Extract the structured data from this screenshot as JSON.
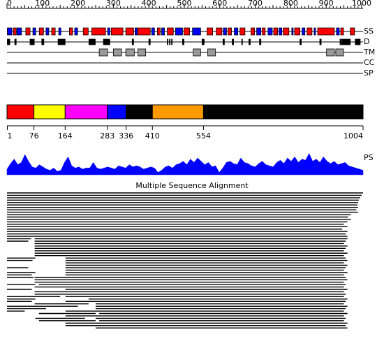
{
  "ruler": {
    "ticks": [
      0,
      100,
      200,
      300,
      400,
      500,
      600,
      700,
      800,
      900,
      1000
    ]
  },
  "tracks": [
    {
      "label": "SS",
      "segments": [
        {
          "kind": "strand",
          "range": [
            1,
            14
          ]
        },
        {
          "kind": "helix",
          "range": [
            18,
            26
          ]
        },
        {
          "kind": "strand",
          "range": [
            28,
            41
          ]
        },
        {
          "kind": "helix",
          "range": [
            53,
            65
          ]
        },
        {
          "kind": "strand",
          "range": [
            73,
            81
          ]
        },
        {
          "kind": "helix",
          "range": [
            91,
            103
          ]
        },
        {
          "kind": "strand",
          "range": [
            110,
            118
          ]
        },
        {
          "kind": "helix",
          "range": [
            126,
            136
          ]
        },
        {
          "kind": "strand",
          "range": [
            146,
            152
          ]
        },
        {
          "kind": "helix",
          "range": [
            176,
            185
          ]
        },
        {
          "kind": "strand",
          "range": [
            191,
            199
          ]
        },
        {
          "kind": "helix",
          "range": [
            215,
            229
          ]
        },
        {
          "kind": "helix",
          "range": [
            239,
            278
          ]
        },
        {
          "kind": "strand",
          "range": [
            284,
            290
          ]
        },
        {
          "kind": "helix",
          "range": [
            294,
            327
          ]
        },
        {
          "kind": "helix",
          "range": [
            335,
            357
          ]
        },
        {
          "kind": "strand",
          "range": [
            361,
            367
          ]
        },
        {
          "kind": "helix",
          "range": [
            369,
            404
          ]
        },
        {
          "kind": "strand",
          "range": [
            408,
            416
          ]
        },
        {
          "kind": "helix",
          "range": [
            424,
            432
          ]
        },
        {
          "kind": "strand",
          "range": [
            436,
            444
          ]
        },
        {
          "kind": "helix",
          "range": [
            452,
            469
          ]
        },
        {
          "kind": "strand",
          "range": [
            475,
            495
          ]
        },
        {
          "kind": "helix",
          "range": [
            499,
            515
          ]
        },
        {
          "kind": "strand",
          "range": [
            523,
            546
          ]
        },
        {
          "kind": "helix",
          "range": [
            564,
            580
          ]
        },
        {
          "kind": "helix",
          "range": [
            590,
            606
          ]
        },
        {
          "kind": "strand",
          "range": [
            610,
            619
          ]
        },
        {
          "kind": "helix",
          "range": [
            623,
            633
          ]
        },
        {
          "kind": "strand",
          "range": [
            641,
            651
          ]
        },
        {
          "kind": "helix",
          "range": [
            657,
            671
          ]
        },
        {
          "kind": "helix",
          "range": [
            688,
            698
          ]
        },
        {
          "kind": "strand",
          "range": [
            704,
            716
          ]
        },
        {
          "kind": "helix",
          "range": [
            720,
            728
          ]
        },
        {
          "kind": "strand",
          "range": [
            736,
            748
          ]
        },
        {
          "kind": "helix",
          "range": [
            752,
            763
          ]
        },
        {
          "kind": "strand",
          "range": [
            767,
            775
          ]
        },
        {
          "kind": "helix",
          "range": [
            779,
            795
          ]
        },
        {
          "kind": "strand",
          "range": [
            803,
            807
          ]
        },
        {
          "kind": "helix",
          "range": [
            811,
            826
          ]
        },
        {
          "kind": "strand",
          "range": [
            832,
            840
          ]
        },
        {
          "kind": "helix",
          "range": [
            846,
            860
          ]
        },
        {
          "kind": "strand",
          "range": [
            866,
            870
          ]
        },
        {
          "kind": "helix",
          "range": [
            876,
            923
          ]
        },
        {
          "kind": "strand",
          "range": [
            929,
            937
          ]
        },
        {
          "kind": "helix",
          "range": [
            941,
            949
          ]
        },
        {
          "kind": "helix",
          "range": [
            968,
            980
          ]
        }
      ]
    },
    {
      "label": "D",
      "segments": [
        {
          "kind": "disorder",
          "range": [
            1,
            8
          ]
        },
        {
          "kind": "disorder",
          "range": [
            22,
            26
          ]
        },
        {
          "kind": "disorder",
          "range": [
            65,
            77
          ]
        },
        {
          "kind": "disorder",
          "range": [
            98,
            104
          ]
        },
        {
          "kind": "disorder",
          "range": [
            144,
            164
          ]
        },
        {
          "kind": "disorder",
          "range": [
            231,
            249
          ]
        },
        {
          "kind": "disorder",
          "range": [
            272,
            290
          ]
        },
        {
          "kind": "disorder",
          "range": [
            353,
            357
          ]
        },
        {
          "kind": "disorder",
          "range": [
            400,
            404
          ]
        },
        {
          "kind": "disorder",
          "range": [
            452,
            454
          ]
        },
        {
          "kind": "disorder",
          "range": [
            458,
            460
          ]
        },
        {
          "kind": "disorder",
          "range": [
            464,
            466
          ]
        },
        {
          "kind": "disorder",
          "range": [
            495,
            499
          ]
        },
        {
          "kind": "disorder",
          "range": [
            550,
            556
          ]
        },
        {
          "kind": "disorder",
          "range": [
            609,
            613
          ]
        },
        {
          "kind": "disorder",
          "range": [
            635,
            639
          ]
        },
        {
          "kind": "disorder",
          "range": [
            662,
            664
          ]
        },
        {
          "kind": "disorder",
          "range": [
            682,
            686
          ]
        },
        {
          "kind": "disorder",
          "range": [
            712,
            716
          ]
        },
        {
          "kind": "disorder",
          "range": [
            826,
            830
          ]
        },
        {
          "kind": "disorder",
          "range": [
            882,
            886
          ]
        },
        {
          "kind": "disorder",
          "range": [
            939,
            943
          ]
        },
        {
          "kind": "disorder",
          "range": [
            945,
            968
          ]
        },
        {
          "kind": "disorder",
          "range": [
            982,
            996
          ]
        }
      ]
    },
    {
      "label": "TM",
      "segments": [
        {
          "kind": "tm",
          "range": [
            260,
            284
          ]
        },
        {
          "kind": "tm",
          "range": [
            300,
            323
          ]
        },
        {
          "kind": "tm",
          "range": [
            335,
            359
          ]
        },
        {
          "kind": "tm",
          "range": [
            369,
            391
          ]
        },
        {
          "kind": "tm",
          "range": [
            525,
            546
          ]
        },
        {
          "kind": "tm",
          "range": [
            566,
            588
          ]
        },
        {
          "kind": "tm",
          "range": [
            901,
            923
          ]
        },
        {
          "kind": "tm",
          "range": [
            927,
            949
          ]
        }
      ]
    },
    {
      "label": "CC",
      "segments": []
    },
    {
      "label": "SP",
      "segments": []
    }
  ],
  "kind_colors": {
    "helix": "#ff0000",
    "strand": "#0000ff",
    "disorder": "#000000",
    "tm": "#999999"
  },
  "domains": {
    "boundaries": [
      1,
      76,
      164,
      283,
      336,
      410,
      554,
      1004
    ],
    "colors": [
      "#ff0000",
      "#ffff00",
      "#ff00ff",
      "#0000ff",
      "#000000",
      "#ff9900",
      "#000000"
    ]
  },
  "ps": {
    "label": "PS",
    "color": "#0000ff",
    "values": [
      0.25,
      0.5,
      0.7,
      0.45,
      0.55,
      0.9,
      0.6,
      0.35,
      0.3,
      0.45,
      0.35,
      0.25,
      0.2,
      0.3,
      0.15,
      0.2,
      0.55,
      0.8,
      0.4,
      0.3,
      0.35,
      0.25,
      0.3,
      0.3,
      0.55,
      0.3,
      0.25,
      0.3,
      0.35,
      0.3,
      0.25,
      0.4,
      0.35,
      0.3,
      0.45,
      0.35,
      0.4,
      0.35,
      0.25,
      0.3,
      0.35,
      0.3,
      0.1,
      0.2,
      0.35,
      0.4,
      0.3,
      0.45,
      0.5,
      0.6,
      0.45,
      0.7,
      0.55,
      0.75,
      0.6,
      0.45,
      0.55,
      0.35,
      0.4,
      0.1,
      0.3,
      0.55,
      0.6,
      0.5,
      0.45,
      0.75,
      0.55,
      0.5,
      0.4,
      0.35,
      0.5,
      0.6,
      0.45,
      0.4,
      0.35,
      0.55,
      0.65,
      0.5,
      0.75,
      0.6,
      0.8,
      0.55,
      0.7,
      0.65,
      0.95,
      0.6,
      0.7,
      0.55,
      0.8,
      0.6,
      0.5,
      0.6,
      0.45,
      0.5,
      0.55,
      0.4,
      0.35,
      0.3,
      0.25,
      0.2
    ]
  },
  "msa": {
    "title": "Multiple Sequence Alignment",
    "rows": [
      [
        [
          1,
          1004
        ]
      ],
      [
        [
          1,
          1000
        ]
      ],
      [
        [
          1,
          996
        ]
      ],
      [
        [
          1,
          992
        ]
      ],
      [
        [
          1,
          990
        ]
      ],
      [
        [
          1,
          988
        ]
      ],
      [
        [
          1,
          990
        ]
      ],
      [
        [
          1,
          985
        ]
      ],
      [
        [
          1,
          990
        ]
      ],
      [
        [
          1,
          970
        ]
      ],
      [
        [
          1,
          962
        ]
      ],
      [
        [
          1,
          970
        ]
      ],
      [
        [
          1,
          960
        ]
      ],
      [
        [
          1,
          950
        ]
      ],
      [
        [
          1,
          960
        ]
      ],
      [
        [
          1,
          945
        ]
      ],
      [
        [
          1,
          960
        ]
      ],
      [
        [
          1,
          955
        ]
      ],
      [
        [
          1,
          960
        ]
      ],
      [
        [
          1,
          68
        ],
        [
          78,
          960
        ]
      ],
      [
        [
          1,
          60
        ],
        [
          78,
          955
        ]
      ],
      [
        [
          78,
          950
        ]
      ],
      [
        [
          78,
          960
        ]
      ],
      [
        [
          78,
          955
        ]
      ],
      [
        [
          78,
          950
        ]
      ],
      [
        [
          78,
          960
        ]
      ],
      [
        [
          78,
          950
        ]
      ],
      [
        [
          1,
          80
        ],
        [
          165,
          955
        ]
      ],
      [
        [
          1,
          72
        ],
        [
          165,
          960
        ]
      ],
      [
        [
          165,
          950
        ]
      ],
      [
        [
          165,
          960
        ]
      ],
      [
        [
          1,
          60
        ],
        [
          165,
          955
        ]
      ],
      [
        [
          165,
          950
        ]
      ],
      [
        [
          1,
          80
        ],
        [
          165,
          960
        ]
      ],
      [
        [
          1,
          70
        ],
        [
          165,
          950
        ]
      ],
      [
        [
          1,
          75
        ],
        [
          78,
          955
        ]
      ],
      [
        [
          78,
          960
        ]
      ],
      [
        [
          78,
          950
        ]
      ],
      [
        [
          1,
          80
        ],
        [
          90,
          955
        ]
      ],
      [
        [
          78,
          950
        ]
      ],
      [
        [
          1,
          70
        ],
        [
          165,
          960
        ]
      ],
      [
        [
          78,
          950
        ]
      ],
      [
        [
          78,
          955
        ]
      ],
      [
        [
          1,
          150
        ],
        [
          165,
          950
        ]
      ],
      [
        [
          1,
          80
        ],
        [
          230,
          960
        ]
      ],
      [
        [
          1,
          70
        ],
        [
          165,
          955
        ]
      ],
      [
        [
          78,
          230
        ],
        [
          250,
          950
        ]
      ],
      [
        [
          1,
          200
        ],
        [
          250,
          960
        ]
      ],
      [
        [
          1,
          110
        ],
        [
          250,
          955
        ]
      ],
      [
        [
          1,
          50
        ],
        [
          165,
          950
        ]
      ],
      [
        [
          90,
          250
        ],
        [
          260,
          960
        ]
      ],
      [
        [
          165,
          950
        ]
      ],
      [
        [
          80,
          220
        ],
        [
          250,
          955
        ]
      ],
      [
        [
          90,
          250
        ],
        [
          260,
          950
        ]
      ],
      [
        [
          165,
          960
        ]
      ],
      [
        [
          165,
          955
        ]
      ],
      [
        [
          250,
          960
        ]
      ]
    ]
  }
}
